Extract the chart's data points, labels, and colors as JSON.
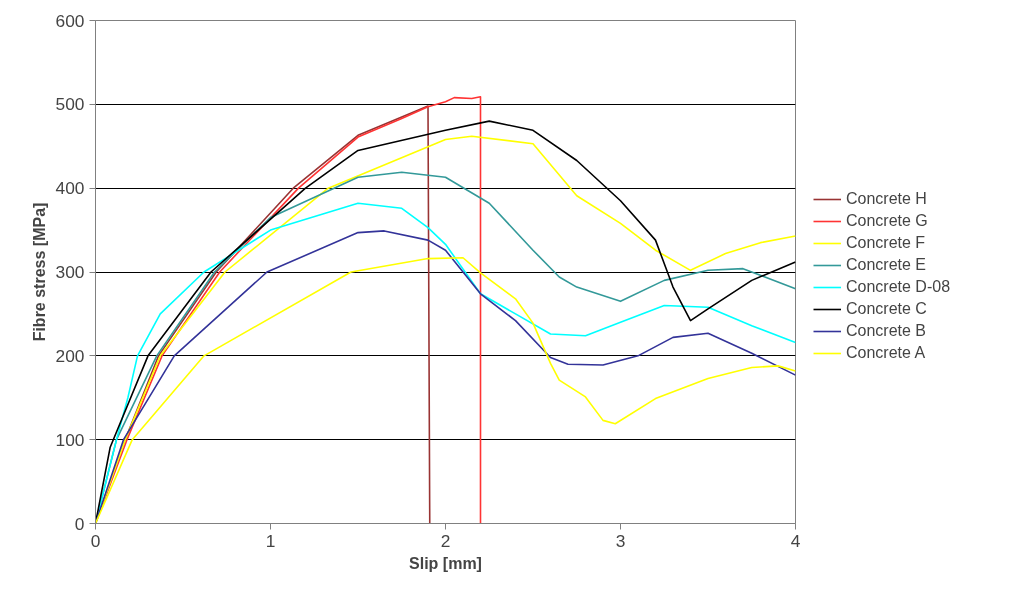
{
  "chart_data": {
    "type": "line",
    "xlabel": "Slip [mm]",
    "ylabel": "Fibre stress [MPa]",
    "xlim": [
      0,
      4
    ],
    "ylim": [
      0,
      600
    ],
    "xticks": [
      0,
      1,
      2,
      3,
      4
    ],
    "yticks": [
      0,
      100,
      200,
      300,
      400,
      500,
      600
    ],
    "grid": "y",
    "legend": "right",
    "line_style": "solid",
    "marker": "none",
    "series": [
      {
        "name": "Concrete H",
        "color": "#993333",
        "x": [
          0,
          0.17,
          0.36,
          0.69,
          1.13,
          1.5,
          1.75,
          1.9,
          1.91
        ],
        "values": [
          0,
          100,
          200,
          300,
          400,
          463,
          485,
          498,
          0
        ]
      },
      {
        "name": "Concrete G",
        "color": "#ff3333",
        "x": [
          0,
          0.18,
          0.38,
          0.71,
          1.16,
          1.5,
          1.75,
          1.9,
          2.0,
          2.05,
          2.15,
          2.2,
          2.2
        ],
        "values": [
          0,
          100,
          200,
          300,
          400,
          461,
          483,
          497,
          503,
          508,
          507,
          509,
          0
        ]
      },
      {
        "name": "Concrete F",
        "color": "#ffff00",
        "x": [
          0,
          0.17,
          0.37,
          0.74,
          1.33,
          2.0,
          2.15,
          2.5,
          2.75,
          3.0,
          3.2,
          3.4,
          3.6,
          3.8,
          4.0
        ],
        "values": [
          0,
          100,
          200,
          300,
          400,
          458,
          462,
          453,
          391,
          358,
          326,
          302,
          322,
          335,
          343
        ]
      },
      {
        "name": "Concrete E",
        "color": "#339999",
        "x": [
          0,
          0.12,
          0.35,
          0.68,
          1.0,
          1.5,
          1.75,
          2.0,
          2.25,
          2.5,
          2.65,
          2.75,
          3.0,
          3.25,
          3.5,
          3.7,
          4.0
        ],
        "values": [
          0,
          100,
          200,
          300,
          365,
          413,
          419,
          413,
          382,
          326,
          294,
          282,
          265,
          290,
          302,
          304,
          280
        ]
      },
      {
        "name": "Concrete D-08",
        "color": "#00ffff",
        "x": [
          0,
          0.12,
          0.185,
          0.24,
          0.37,
          0.62,
          1.0,
          1.5,
          1.75,
          1.9,
          2.0,
          2.2,
          2.4,
          2.6,
          2.8,
          3.0,
          3.25,
          3.5,
          3.75,
          4.0
        ],
        "values": [
          0,
          100,
          150,
          200,
          250,
          300,
          350,
          382,
          376,
          353,
          333,
          274,
          250,
          226,
          224,
          240,
          260,
          258,
          236,
          216
        ]
      },
      {
        "name": "Concrete C",
        "color": "#000000",
        "x": [
          0,
          0.084,
          0.3,
          0.66,
          1.2,
          1.5,
          2.0,
          2.25,
          2.5,
          2.75,
          3.0,
          3.2,
          3.3,
          3.4,
          3.5,
          3.75,
          4.0
        ],
        "values": [
          0,
          91,
          200,
          300,
          400,
          445,
          469,
          480,
          469,
          433,
          385,
          338,
          282,
          242,
          256,
          290,
          312
        ]
      },
      {
        "name": "Concrete B",
        "color": "#333399",
        "x": [
          0,
          0.16,
          0.45,
          0.98,
          1.5,
          1.65,
          1.9,
          2.0,
          2.2,
          2.4,
          2.6,
          2.7,
          2.9,
          3.1,
          3.3,
          3.5,
          3.75,
          4.0
        ],
        "values": [
          0,
          100,
          200,
          300,
          347,
          349,
          338,
          326,
          274,
          242,
          198,
          190,
          189,
          200,
          222,
          227,
          203,
          177
        ]
      },
      {
        "name": "Concrete A",
        "color": "#ffff00",
        "x": [
          0,
          0.21,
          0.62,
          1.46,
          1.9,
          2.1,
          2.2,
          2.4,
          2.5,
          2.6,
          2.65,
          2.8,
          2.9,
          2.97,
          3.2,
          3.5,
          3.75,
          3.9,
          4.0
        ],
        "values": [
          0,
          100,
          200,
          300,
          316,
          317,
          299,
          268,
          239,
          191,
          171,
          151,
          123,
          119,
          149,
          173,
          186,
          188,
          182
        ]
      }
    ]
  }
}
